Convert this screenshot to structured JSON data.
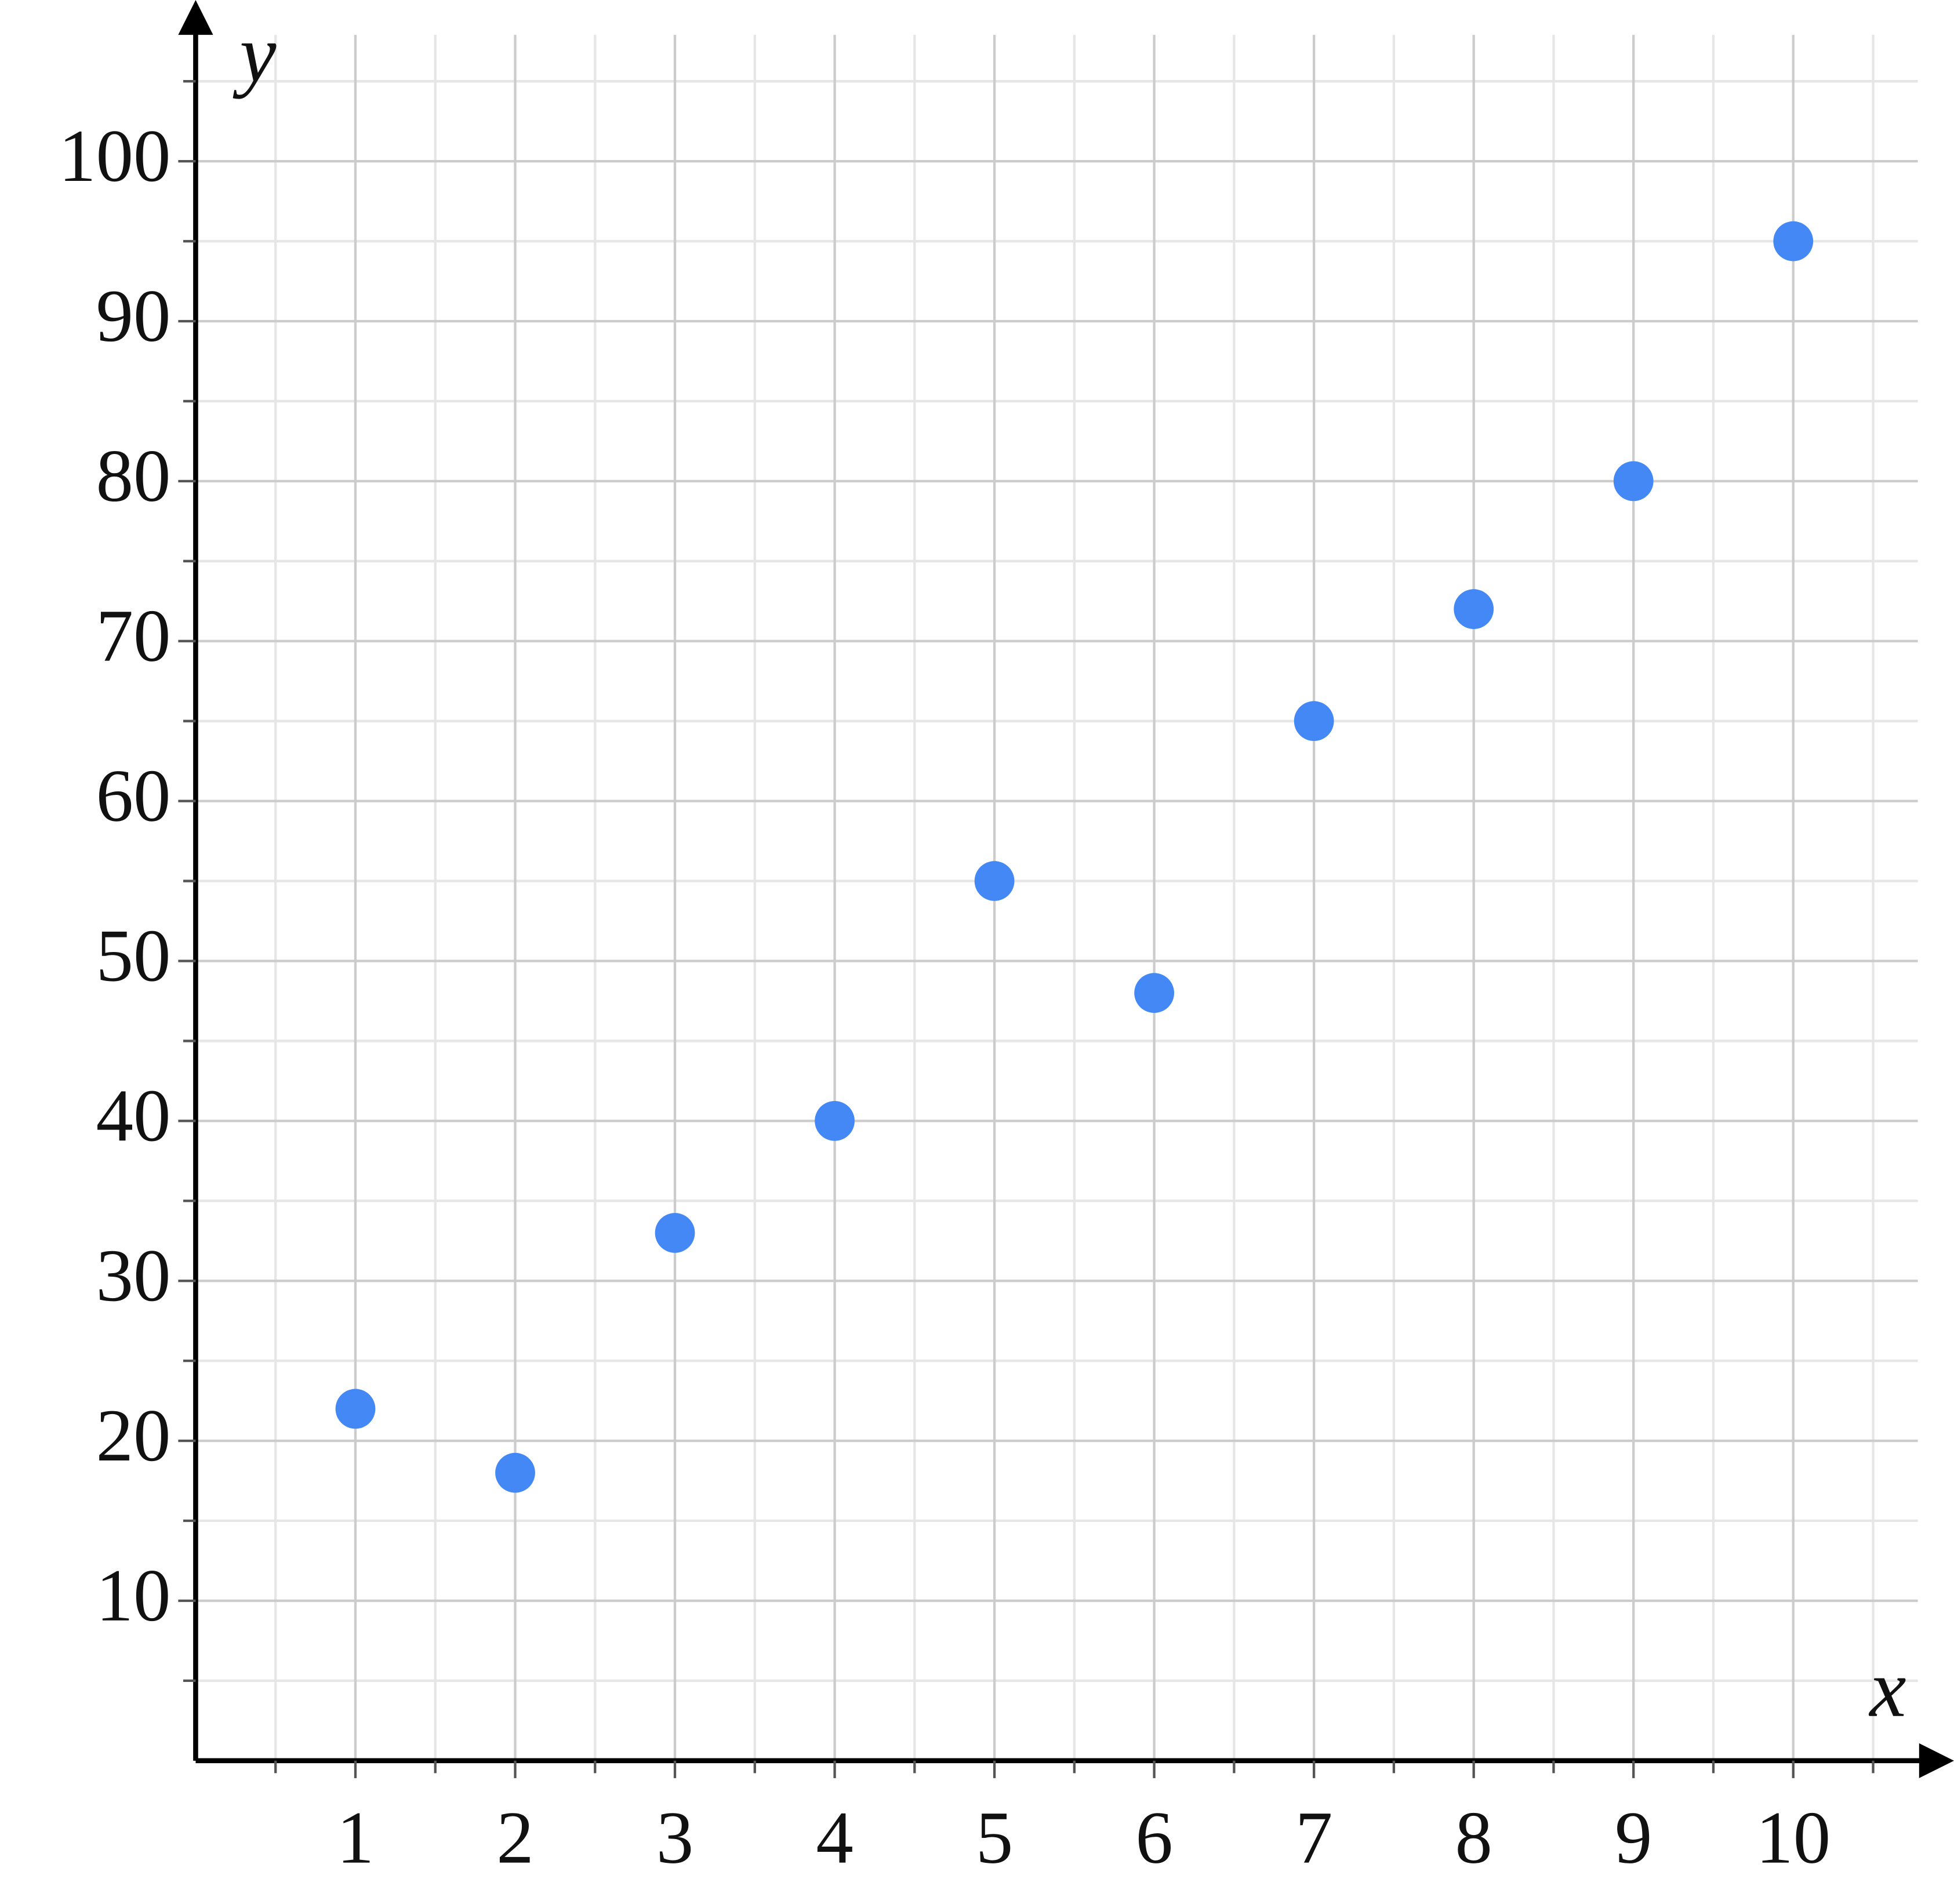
{
  "chart_data": {
    "type": "scatter",
    "x_label": "x",
    "y_label": "y",
    "x": [
      1,
      2,
      3,
      4,
      5,
      6,
      7,
      8,
      9,
      10
    ],
    "values": [
      22,
      18,
      33,
      40,
      55,
      48,
      65,
      72,
      80,
      95
    ],
    "color": "#4488f5",
    "xlim": [
      0,
      10.78
    ],
    "ylim": [
      0,
      107.9
    ],
    "xticks": [
      1,
      2,
      3,
      4,
      5,
      6,
      7,
      8,
      9,
      10
    ],
    "yticks": [
      10,
      20,
      30,
      40,
      50,
      60,
      70,
      80,
      90,
      100
    ],
    "xminorticks": [
      0.5,
      1.5,
      2.5,
      3.5,
      4.5,
      5.5,
      6.5,
      7.5,
      8.5,
      9.5,
      10.5
    ],
    "yminorticks": [
      5,
      15,
      25,
      35,
      45,
      55,
      65,
      75,
      85,
      95,
      105
    ],
    "grid": true
  }
}
